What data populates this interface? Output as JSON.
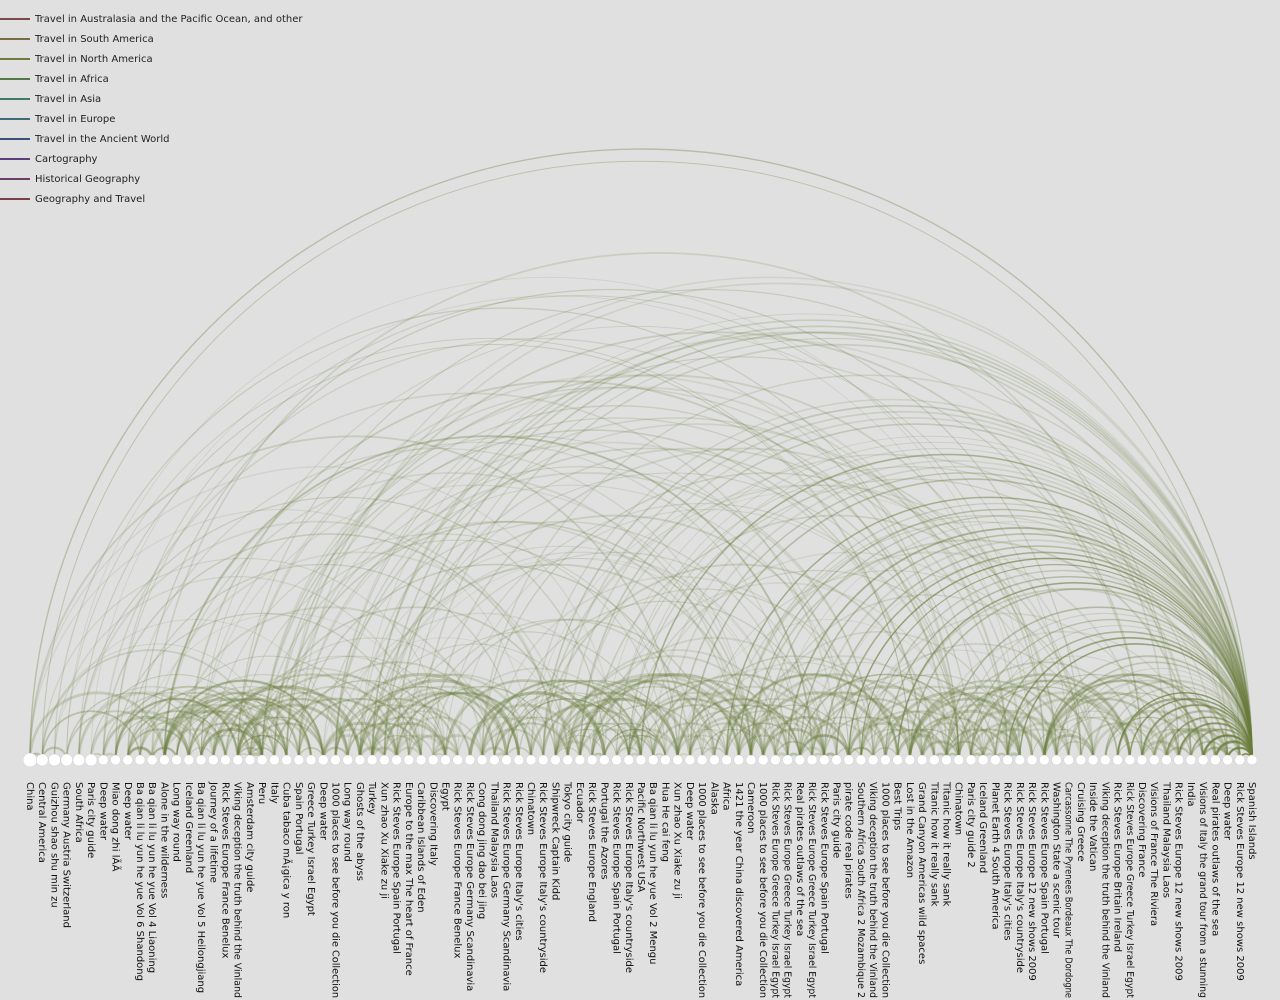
{
  "legend": [
    {
      "label": "Travel in Australasia and the Pacific Ocean, and other",
      "color": "#7a4a4a"
    },
    {
      "label": "Travel in South America",
      "color": "#7a6a45"
    },
    {
      "label": "Travel in North America",
      "color": "#6f7a3e"
    },
    {
      "label": "Travel in Africa",
      "color": "#4f7a45"
    },
    {
      "label": "Travel in Asia",
      "color": "#3f7a6a"
    },
    {
      "label": "Travel in Europe",
      "color": "#3f6a7a"
    },
    {
      "label": "Travel in the Ancient World",
      "color": "#3f4f7a"
    },
    {
      "label": "Cartography",
      "color": "#5a3f7a"
    },
    {
      "label": "Historical Geography",
      "color": "#6a3f6a"
    },
    {
      "label": "Geography and Travel",
      "color": "#7a3f4a"
    }
  ],
  "arc_color": "#6b7f3e",
  "node_color": "#ffffff",
  "nodes": [
    "China",
    "Central America",
    "Guizhou shao shu min zu",
    "Germany Austria Switzerland",
    "South Africa",
    "Paris city guide",
    "Deep water",
    "Miao dong zhi lÃ­Ã­",
    "Deep water",
    "Ba qian li lu yun he yue Vol 6 Shandong",
    "Ba qian li lu yun he yue Vol 4 Liaoning",
    "Alone in the wilderness",
    "Long way round",
    "Iceland Greenland",
    "Ba qian li lu yun he yue Vol 5 Heilongjiang",
    "Journey of a lifetime",
    "Rick Steves Europe France Benelux",
    "Viking deception the truth behind the Vinland",
    "Amsterdam city guide",
    "Peru",
    "Italy",
    "Cuba tabaco mÃ¡gica y ron",
    "Spain Portugal",
    "Greece Turkey Israel Egypt",
    "Deep water",
    "1000 places to see before you die Collection",
    "Long way round",
    "Ghosts of the abyss",
    "Turkey",
    "Xun zhao Xu Xiake zu ji",
    "Rick Steves Europe Spain Portugal",
    "Europe to the max The heart of France",
    "Caribbean Islands of Eden",
    "Discovering Italy",
    "Egypt",
    "Rick Steves Europe France Benelux",
    "Rick Steves Europe Germany Scandinavia",
    "Cong dong jing dao bei jing",
    "Thailand Malaysia Laos",
    "Rick Steves Europe Germany Scandinavia",
    "Rick Steves Europe Italy's cities",
    "Chinatown",
    "Rick Steves Europe Italy's countryside",
    "Shipwreck Captain Kidd",
    "Tokyo city guide",
    "Ecuador",
    "Rick Steves Europe England",
    "Portugal the Azores",
    "Rick Steves Europe Spain Portugal",
    "Rick Steves Europe Italy's countryside",
    "Pacific Northwest USA",
    "Ba qian li lu yun he yue Vol 2 Mengu",
    "Hua He cai feng",
    "Xun zhao Xu Xiake zu ji",
    "Deep water",
    "1000 places to see before you die Collection",
    "Alaska",
    "Africa",
    "1421 the year China discovered America",
    "Cameroon",
    "1000 places to see before you die Collection",
    "Rick Steves Europe Greece Turkey Israel Egypt",
    "Rick Steves Europe Greece Turkey Israel Egypt",
    "Real pirates outlaws of the sea",
    "Rick Steves Europe Greece Turkey Israel Egypt",
    "Rick Steves Europe Spain Portugal",
    "Paris city guide",
    "pirate code real pirates",
    "Southern Africa South Africa 2 Mozambique 2",
    "Viking deception the truth behind the Vinland",
    "1000 places to see before you die Collection",
    "Best Trips",
    "Lost in the Amazon",
    "Grand Canyon Americas wild spaces",
    "Titanic how it really sank",
    "Titanic how it really sank",
    "Chinatown",
    "Paris city guide 2",
    "Iceland Greenland",
    "Planet Earth 4 South America",
    "Rick Steves Europe Italy's cities",
    "Rick Steves Europe Italy's countryside",
    "Rick Steves Europe 12 new shows 2009",
    "Rick Steves Europe Spain Portugal",
    "Washington State a scenic tour",
    "Carcassonne The Pyrenees Bordeaux The Dordogne",
    "Cruising Greece",
    "Inside the Vatican",
    "Viking deception the truth behind the Vinland",
    "Rick Steves Europe Britain Ireland",
    "Rick Steves Europe Greece Turkey Israel Egypt",
    "Discovering France",
    "Visions of France The Riviera",
    "Thailand Malaysia Laos",
    "Rick Steves Europe 12 new shows 2009",
    "India",
    "Visions of Italy the grand tour from a stunning",
    "Real pirates outlaws of the sea",
    "Deep water",
    "Rick Steves Europe 12 new shows 2009",
    "Spanish Islands"
  ]
}
